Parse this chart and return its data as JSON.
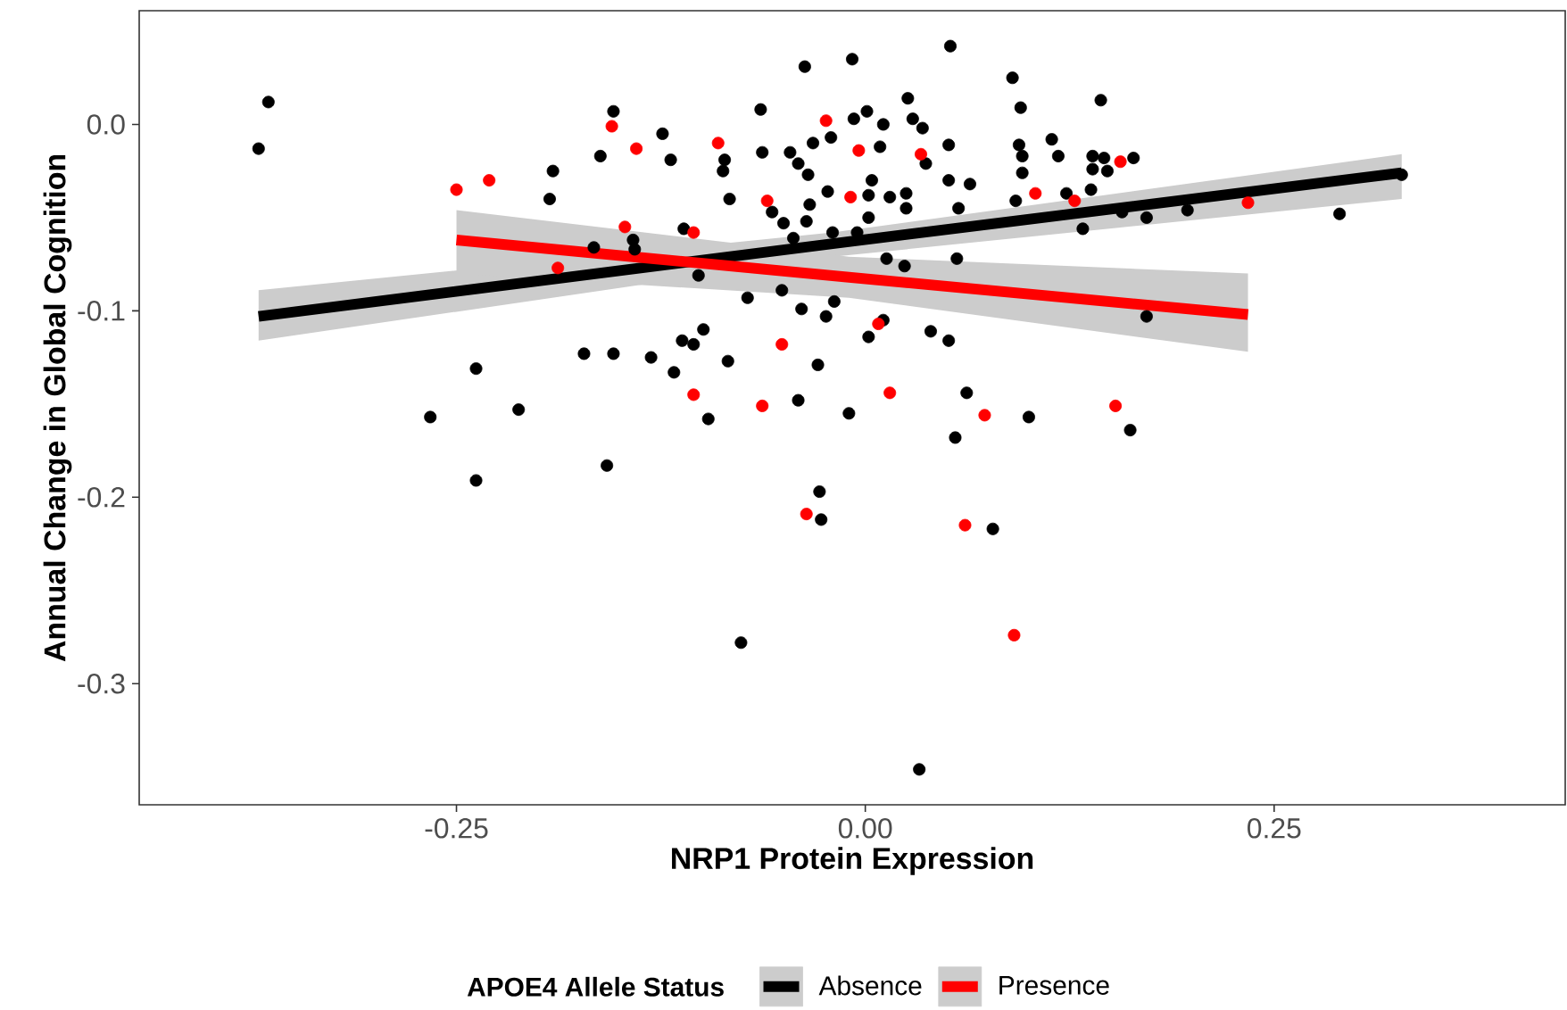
{
  "chart_data": {
    "type": "scatter",
    "xlabel": "NRP1 Protein Expression",
    "ylabel": "Annual Change in Global Cognition",
    "legend_title": "APOE4 Allele Status",
    "legend": "bottom",
    "grid": false,
    "marker": "circle",
    "xlim": [
      -0.444,
      0.428
    ],
    "ylim": [
      -0.365,
      0.061
    ],
    "xticks": [
      {
        "value": -0.25,
        "label": "-0.25"
      },
      {
        "value": 0,
        "label": "0.00"
      },
      {
        "value": 0.25,
        "label": "0.25"
      }
    ],
    "yticks": [
      -0.3,
      -0.2,
      -0.1,
      {
        "value": 0,
        "label": "0.0"
      }
    ],
    "series": [
      {
        "name": "Absence",
        "color": "#000000",
        "x": [
          -0.371,
          -0.365,
          -0.266,
          -0.238,
          -0.238,
          -0.212,
          -0.193,
          -0.191,
          -0.172,
          -0.166,
          -0.162,
          -0.158,
          -0.154,
          -0.154,
          -0.142,
          -0.141,
          -0.131,
          -0.124,
          -0.119,
          -0.117,
          -0.112,
          -0.111,
          -0.105,
          -0.102,
          -0.099,
          -0.096,
          -0.087,
          -0.086,
          -0.084,
          -0.083,
          -0.076,
          -0.072,
          -0.064,
          -0.063,
          -0.057,
          -0.051,
          -0.05,
          -0.046,
          -0.044,
          -0.041,
          -0.041,
          -0.039,
          -0.037,
          -0.036,
          -0.035,
          -0.034,
          -0.032,
          -0.029,
          -0.028,
          -0.027,
          -0.024,
          -0.023,
          -0.021,
          -0.02,
          -0.019,
          -0.01,
          -0.008,
          -0.007,
          -0.005,
          0.001,
          0.002,
          0.002,
          0.002,
          0.004,
          0.009,
          0.011,
          0.011,
          0.013,
          0.015,
          0.024,
          0.025,
          0.025,
          0.026,
          0.029,
          0.033,
          0.035,
          0.037,
          0.04,
          0.051,
          0.051,
          0.051,
          0.052,
          0.055,
          0.056,
          0.057,
          0.062,
          0.064,
          0.078,
          0.09,
          0.092,
          0.094,
          0.095,
          0.096,
          0.096,
          0.1,
          0.114,
          0.118,
          0.123,
          0.133,
          0.138,
          0.139,
          0.139,
          0.144,
          0.146,
          0.148,
          0.157,
          0.162,
          0.164,
          0.172,
          0.172,
          0.197,
          0.29,
          0.328
        ],
        "values": [
          -0.013,
          0.012,
          -0.157,
          -0.131,
          -0.191,
          -0.153,
          -0.04,
          -0.025,
          -0.123,
          -0.066,
          -0.017,
          -0.183,
          0.007,
          -0.123,
          -0.062,
          -0.067,
          -0.125,
          -0.005,
          -0.019,
          -0.133,
          -0.116,
          -0.056,
          -0.118,
          -0.081,
          -0.11,
          -0.158,
          -0.025,
          -0.019,
          -0.127,
          -0.04,
          -0.278,
          -0.093,
          0.008,
          -0.015,
          -0.047,
          -0.089,
          -0.053,
          -0.015,
          -0.061,
          -0.021,
          -0.148,
          -0.099,
          0.031,
          -0.052,
          -0.027,
          -0.043,
          -0.01,
          -0.129,
          -0.197,
          -0.212,
          -0.103,
          -0.036,
          -0.007,
          -0.058,
          -0.095,
          -0.155,
          0.035,
          0.003,
          -0.058,
          0.007,
          -0.038,
          -0.05,
          -0.114,
          -0.03,
          -0.012,
          0.0,
          -0.105,
          -0.072,
          -0.039,
          -0.076,
          -0.037,
          -0.045,
          0.014,
          0.003,
          -0.346,
          -0.002,
          -0.021,
          -0.111,
          -0.011,
          -0.03,
          -0.116,
          0.042,
          -0.168,
          -0.072,
          -0.045,
          -0.144,
          -0.032,
          -0.217,
          0.025,
          -0.041,
          -0.011,
          0.009,
          -0.017,
          -0.026,
          -0.157,
          -0.008,
          -0.017,
          -0.037,
          -0.056,
          -0.035,
          -0.017,
          -0.024,
          0.013,
          -0.018,
          -0.025,
          -0.047,
          -0.164,
          -0.018,
          -0.05,
          -0.103,
          -0.046,
          -0.048,
          -0.027
        ]
      },
      {
        "name": "Presence",
        "color": "#ff0000",
        "x": [
          -0.25,
          -0.23,
          -0.188,
          -0.155,
          -0.147,
          -0.14,
          -0.105,
          -0.105,
          -0.09,
          -0.063,
          -0.06,
          -0.051,
          -0.036,
          -0.024,
          -0.009,
          -0.004,
          0.008,
          0.015,
          0.034,
          0.061,
          0.073,
          0.091,
          0.104,
          0.128,
          0.153,
          0.156,
          0.234
        ],
        "values": [
          -0.035,
          -0.03,
          -0.077,
          -0.001,
          -0.055,
          -0.013,
          -0.058,
          -0.145,
          -0.01,
          -0.151,
          -0.041,
          -0.118,
          -0.209,
          0.002,
          -0.039,
          -0.014,
          -0.107,
          -0.144,
          -0.016,
          -0.215,
          -0.156,
          -0.274,
          -0.037,
          -0.041,
          -0.151,
          -0.02,
          -0.042
        ]
      },
      {
        "type": "line",
        "marker": "none",
        "color": "#000000",
        "x": [
          -0.371,
          -0.02,
          0.328
        ],
        "values": [
          -0.103,
          -0.064,
          -0.026
        ],
        "lower": [
          -0.116,
          -0.071,
          -0.04
        ],
        "upper": [
          -0.089,
          -0.058,
          -0.016
        ]
      },
      {
        "type": "line",
        "marker": "none",
        "color": "#ff0000",
        "x": [
          -0.25,
          -0.01,
          0.234
        ],
        "values": [
          -0.062,
          -0.082,
          -0.102
        ],
        "lower": [
          -0.08,
          -0.093,
          -0.122
        ],
        "upper": [
          -0.046,
          -0.071,
          -0.08
        ]
      }
    ]
  }
}
